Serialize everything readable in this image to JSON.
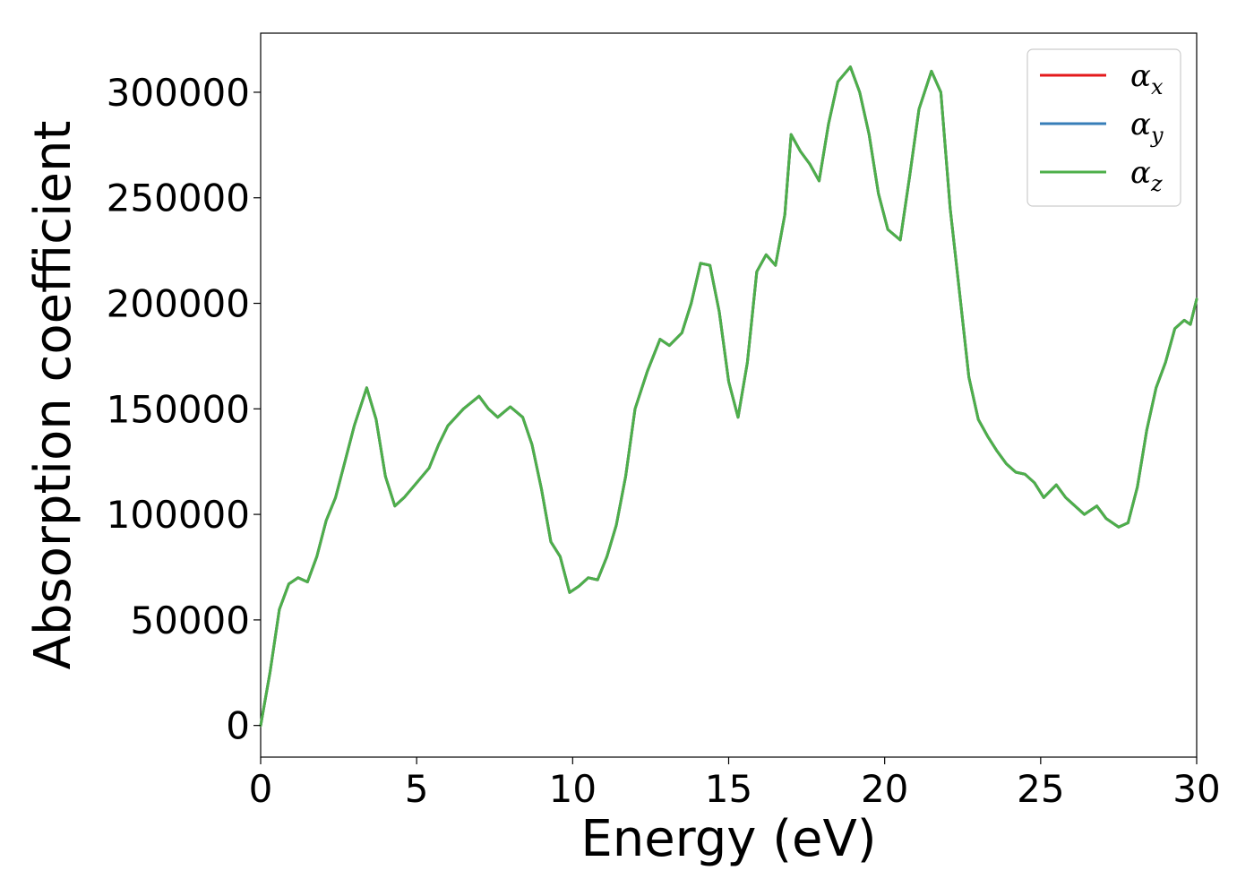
{
  "chart_data": {
    "type": "line",
    "title": "",
    "xlabel": "Energy (eV)",
    "ylabel": "Absorption coefficient",
    "xlim": [
      0,
      30
    ],
    "ylim": [
      -15000,
      328000
    ],
    "xticks": [
      0,
      5,
      10,
      15,
      20,
      25,
      30
    ],
    "xtick_labels": [
      "0",
      "5",
      "10",
      "15",
      "20",
      "25",
      "30"
    ],
    "yticks": [
      0,
      50000,
      100000,
      150000,
      200000,
      250000,
      300000
    ],
    "ytick_labels": [
      "0",
      "50000",
      "100000",
      "150000",
      "200000",
      "250000",
      "300000"
    ],
    "grid": false,
    "legend_position": "top-right",
    "x": [
      0,
      0.3,
      0.6,
      0.9,
      1.2,
      1.5,
      1.8,
      2.1,
      2.4,
      2.7,
      3.0,
      3.4,
      3.7,
      4.0,
      4.3,
      4.6,
      5.0,
      5.4,
      5.7,
      6.0,
      6.5,
      7.0,
      7.3,
      7.6,
      8.0,
      8.4,
      8.7,
      9.0,
      9.3,
      9.6,
      9.9,
      10.2,
      10.5,
      10.8,
      11.1,
      11.4,
      11.7,
      12.0,
      12.4,
      12.8,
      13.1,
      13.5,
      13.8,
      14.1,
      14.4,
      14.7,
      15.0,
      15.3,
      15.6,
      15.9,
      16.2,
      16.5,
      16.8,
      17.0,
      17.3,
      17.6,
      17.9,
      18.2,
      18.5,
      18.9,
      19.2,
      19.5,
      19.8,
      20.1,
      20.5,
      20.8,
      21.1,
      21.5,
      21.8,
      22.1,
      22.4,
      22.7,
      23.0,
      23.3,
      23.6,
      23.9,
      24.2,
      24.5,
      24.8,
      25.1,
      25.5,
      25.8,
      26.1,
      26.4,
      26.8,
      27.1,
      27.5,
      27.8,
      28.1,
      28.4,
      28.7,
      29.0,
      29.3,
      29.6,
      29.8,
      30.0
    ],
    "series": [
      {
        "name": "α_x",
        "label_main": "α",
        "label_sub": "x",
        "color": "#e41a1c",
        "copy_of": "α_z"
      },
      {
        "name": "α_y",
        "label_main": "α",
        "label_sub": "y",
        "color": "#377eb8",
        "copy_of": "α_z"
      },
      {
        "name": "α_z",
        "label_main": "α",
        "label_sub": "z",
        "color": "#4daf4a",
        "values": [
          0,
          25000,
          55000,
          67000,
          70000,
          68000,
          80000,
          97000,
          108000,
          125000,
          142000,
          160000,
          145000,
          118000,
          104000,
          108000,
          115000,
          122000,
          133000,
          142000,
          150000,
          156000,
          150000,
          146000,
          151000,
          146000,
          133000,
          112000,
          87000,
          80000,
          63000,
          66000,
          70000,
          69000,
          80000,
          95000,
          118000,
          150000,
          168000,
          183000,
          180000,
          186000,
          200000,
          219000,
          218000,
          196000,
          163000,
          146000,
          172000,
          215000,
          223000,
          218000,
          242000,
          280000,
          272000,
          266000,
          258000,
          285000,
          305000,
          312000,
          300000,
          280000,
          252000,
          235000,
          230000,
          260000,
          292000,
          310000,
          300000,
          245000,
          205000,
          165000,
          145000,
          137000,
          130000,
          124000,
          120000,
          119000,
          115000,
          108000,
          114000,
          108000,
          104000,
          100000,
          104000,
          98000,
          94000,
          96000,
          113000,
          140000,
          160000,
          172000,
          188000,
          192000,
          190000,
          202000
        ]
      }
    ]
  }
}
